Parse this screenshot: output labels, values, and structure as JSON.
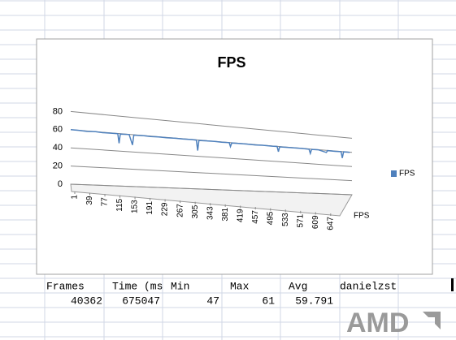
{
  "chart_data": {
    "type": "line",
    "title": "FPS",
    "x": [
      1,
      20,
      39,
      60,
      77,
      100,
      113,
      116,
      119,
      140,
      148,
      151,
      175,
      191,
      210,
      229,
      250,
      267,
      290,
      300,
      303,
      306,
      320,
      343,
      360,
      378,
      381,
      384,
      400,
      419,
      440,
      457,
      480,
      492,
      495,
      498,
      520,
      533,
      550,
      568,
      571,
      574,
      590,
      609,
      612,
      630,
      644,
      647,
      650,
      665
    ],
    "series": [
      {
        "name": "FPS",
        "color": "#4f81bd",
        "values": [
          60,
          60,
          59.5,
          60,
          59.5,
          59.8,
          59.7,
          49,
          59.6,
          59.8,
          48,
          59.6,
          59.8,
          59.5,
          59.9,
          59.6,
          59.8,
          59.7,
          59.9,
          59.6,
          47,
          59.5,
          59.7,
          59.9,
          59.6,
          59.8,
          55,
          59.6,
          59.7,
          59.8,
          59.6,
          59.9,
          59.7,
          59.8,
          53,
          59.6,
          59.8,
          59.7,
          59.9,
          59.6,
          54,
          59.7,
          59.8,
          57,
          59.7,
          59.6,
          59.8,
          51,
          59.8,
          59.9
        ]
      }
    ],
    "xlim": [
      1,
      670
    ],
    "xticks": [
      1,
      39,
      77,
      115,
      153,
      191,
      229,
      267,
      305,
      343,
      381,
      419,
      457,
      495,
      533,
      571,
      609,
      647
    ],
    "ylim": [
      0,
      80
    ],
    "yticks": [
      0,
      20,
      40,
      60,
      80
    ],
    "grid": true,
    "legend": "right"
  },
  "table": {
    "header": [
      "Frames",
      "Time (ms",
      "Min",
      "Max",
      "Avg",
      "danielzst"
    ],
    "rows": [
      [
        40362,
        675047,
        47,
        61,
        59.791
      ]
    ]
  },
  "logo": "AMD"
}
